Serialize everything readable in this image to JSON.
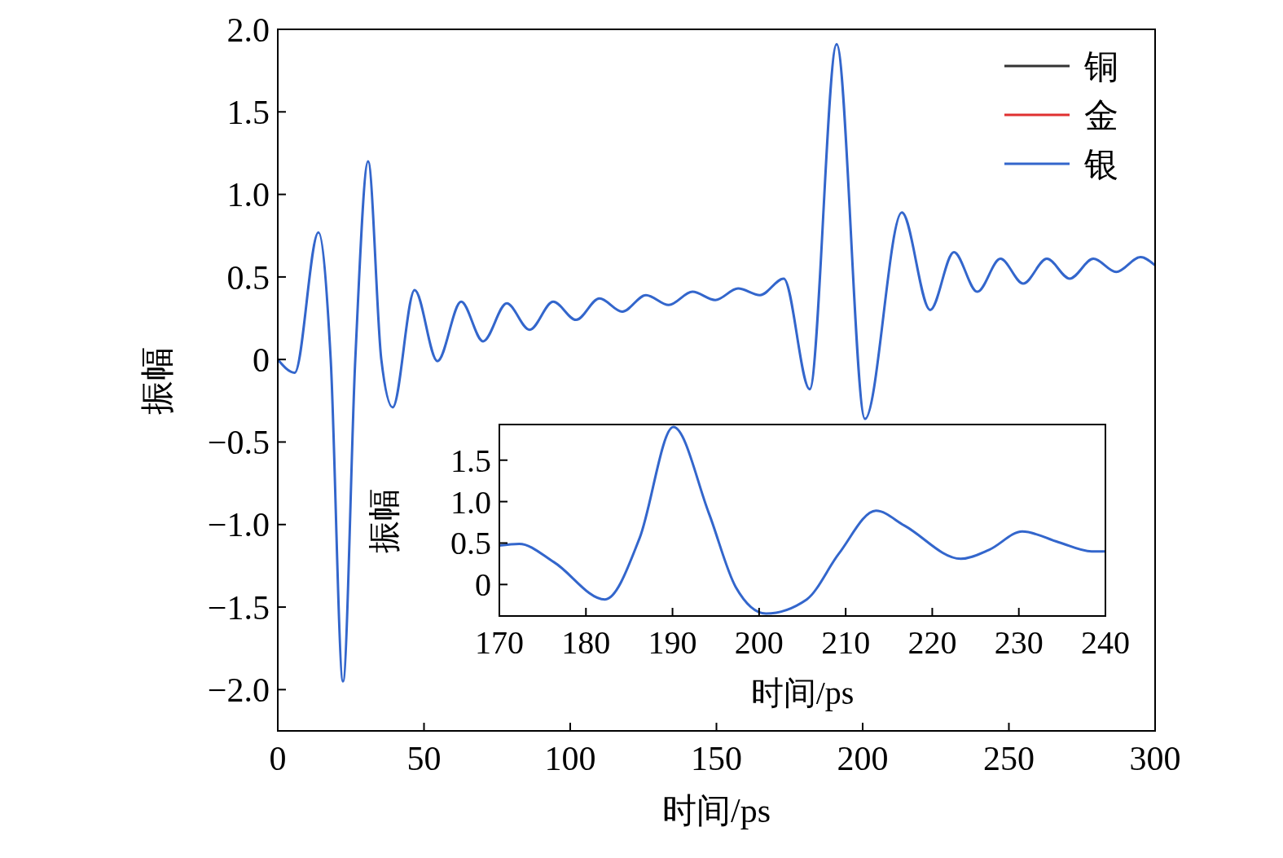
{
  "chart_data": [
    {
      "type": "line",
      "xlabel": "时间/ps",
      "ylabel": "振幅",
      "xlim": [
        0,
        300
      ],
      "ylim": [
        -2.25,
        2.0
      ],
      "xticks": [
        0,
        50,
        100,
        150,
        200,
        250,
        300
      ],
      "yticks": [
        {
          "value": -2,
          "label": "−2.0"
        },
        {
          "value": -1.5,
          "label": "−1.5"
        },
        {
          "value": -1,
          "label": "−1.0"
        },
        {
          "value": -0.5,
          "label": "−0.5"
        },
        {
          "value": 0,
          "label": "0"
        },
        {
          "value": 0.5,
          "label": "0.5"
        },
        {
          "value": 1,
          "label": "1.0"
        },
        {
          "value": 1.5,
          "label": "1.5"
        },
        {
          "value": 2,
          "label": "2.0"
        }
      ],
      "x": [
        0,
        5.8,
        13.9,
        18.1,
        22.3,
        26.5,
        30.9,
        35.4,
        39.3,
        46.8,
        54.6,
        62.7,
        70.2,
        78.3,
        86.1,
        94.2,
        102,
        110,
        117.8,
        125.9,
        133.7,
        141.8,
        149.6,
        157.4,
        164.9,
        173,
        181.9,
        191.1,
        200.8,
        213.4,
        223.1,
        231.2,
        239.2,
        247.1,
        254.9,
        263,
        270.8,
        278.9,
        286.7,
        295,
        300
      ],
      "series": [
        {
          "name": "铜",
          "color": "#333333",
          "values": [
            null,
            null,
            null,
            null,
            null,
            null,
            null,
            null,
            null,
            null,
            null,
            null,
            null,
            null,
            null,
            null,
            null,
            null,
            null,
            null,
            null,
            null,
            null,
            null,
            null,
            null,
            null,
            null,
            null,
            null,
            null,
            null,
            null,
            null,
            null,
            null,
            null,
            null,
            null,
            null,
            null
          ]
        },
        {
          "name": "金",
          "color": "#e03030",
          "values": [
            null,
            null,
            null,
            null,
            null,
            null,
            null,
            null,
            null,
            null,
            null,
            null,
            null,
            null,
            null,
            null,
            null,
            null,
            null,
            null,
            null,
            null,
            null,
            null,
            null,
            null,
            null,
            null,
            null,
            null,
            null,
            null,
            null,
            null,
            null,
            null,
            null,
            null,
            null,
            null,
            null
          ]
        },
        {
          "name": "银",
          "color": "#3366cc",
          "values": [
            0,
            -0.08,
            0.77,
            0,
            -1.95,
            0,
            1.2,
            0,
            -0.29,
            0.42,
            -0.01,
            0.35,
            0.11,
            0.34,
            0.18,
            0.35,
            0.24,
            0.37,
            0.29,
            0.39,
            0.33,
            0.41,
            0.36,
            0.43,
            0.39,
            0.49,
            -0.18,
            1.91,
            -0.36,
            0.89,
            0.3,
            0.65,
            0.41,
            0.61,
            0.46,
            0.61,
            0.49,
            0.61,
            0.53,
            0.62,
            0.57
          ]
        }
      ],
      "legend": "top right",
      "grid": false
    },
    {
      "type": "line",
      "xlabel": "时间/ps",
      "ylabel": "振幅",
      "xlim": [
        170,
        240
      ],
      "ylim": [
        -0.38,
        1.93
      ],
      "xticks": [
        170,
        180,
        190,
        200,
        210,
        220,
        230,
        240
      ],
      "yticks": [
        {
          "value": 0,
          "label": "0"
        },
        {
          "value": 0.5,
          "label": "0.5"
        },
        {
          "value": 1,
          "label": "1.0"
        },
        {
          "value": 1.5,
          "label": "1.5"
        }
      ],
      "x": [
        170,
        172.3,
        176.3,
        182.2,
        186.2,
        190.1,
        194.2,
        197.3,
        200.8,
        205.5,
        209.2,
        213.5,
        216.8,
        223.3,
        226.6,
        230.4,
        234.6,
        238.4,
        240
      ],
      "series": [
        {
          "color": "#3366cc",
          "values": [
            0.47,
            0.49,
            0.27,
            -0.18,
            0.56,
            1.9,
            0.86,
            -0.03,
            -0.35,
            -0.18,
            0.37,
            0.89,
            0.71,
            0.31,
            0.42,
            0.64,
            0.51,
            0.4,
            0.4
          ]
        }
      ],
      "legend": false,
      "grid": false
    }
  ]
}
